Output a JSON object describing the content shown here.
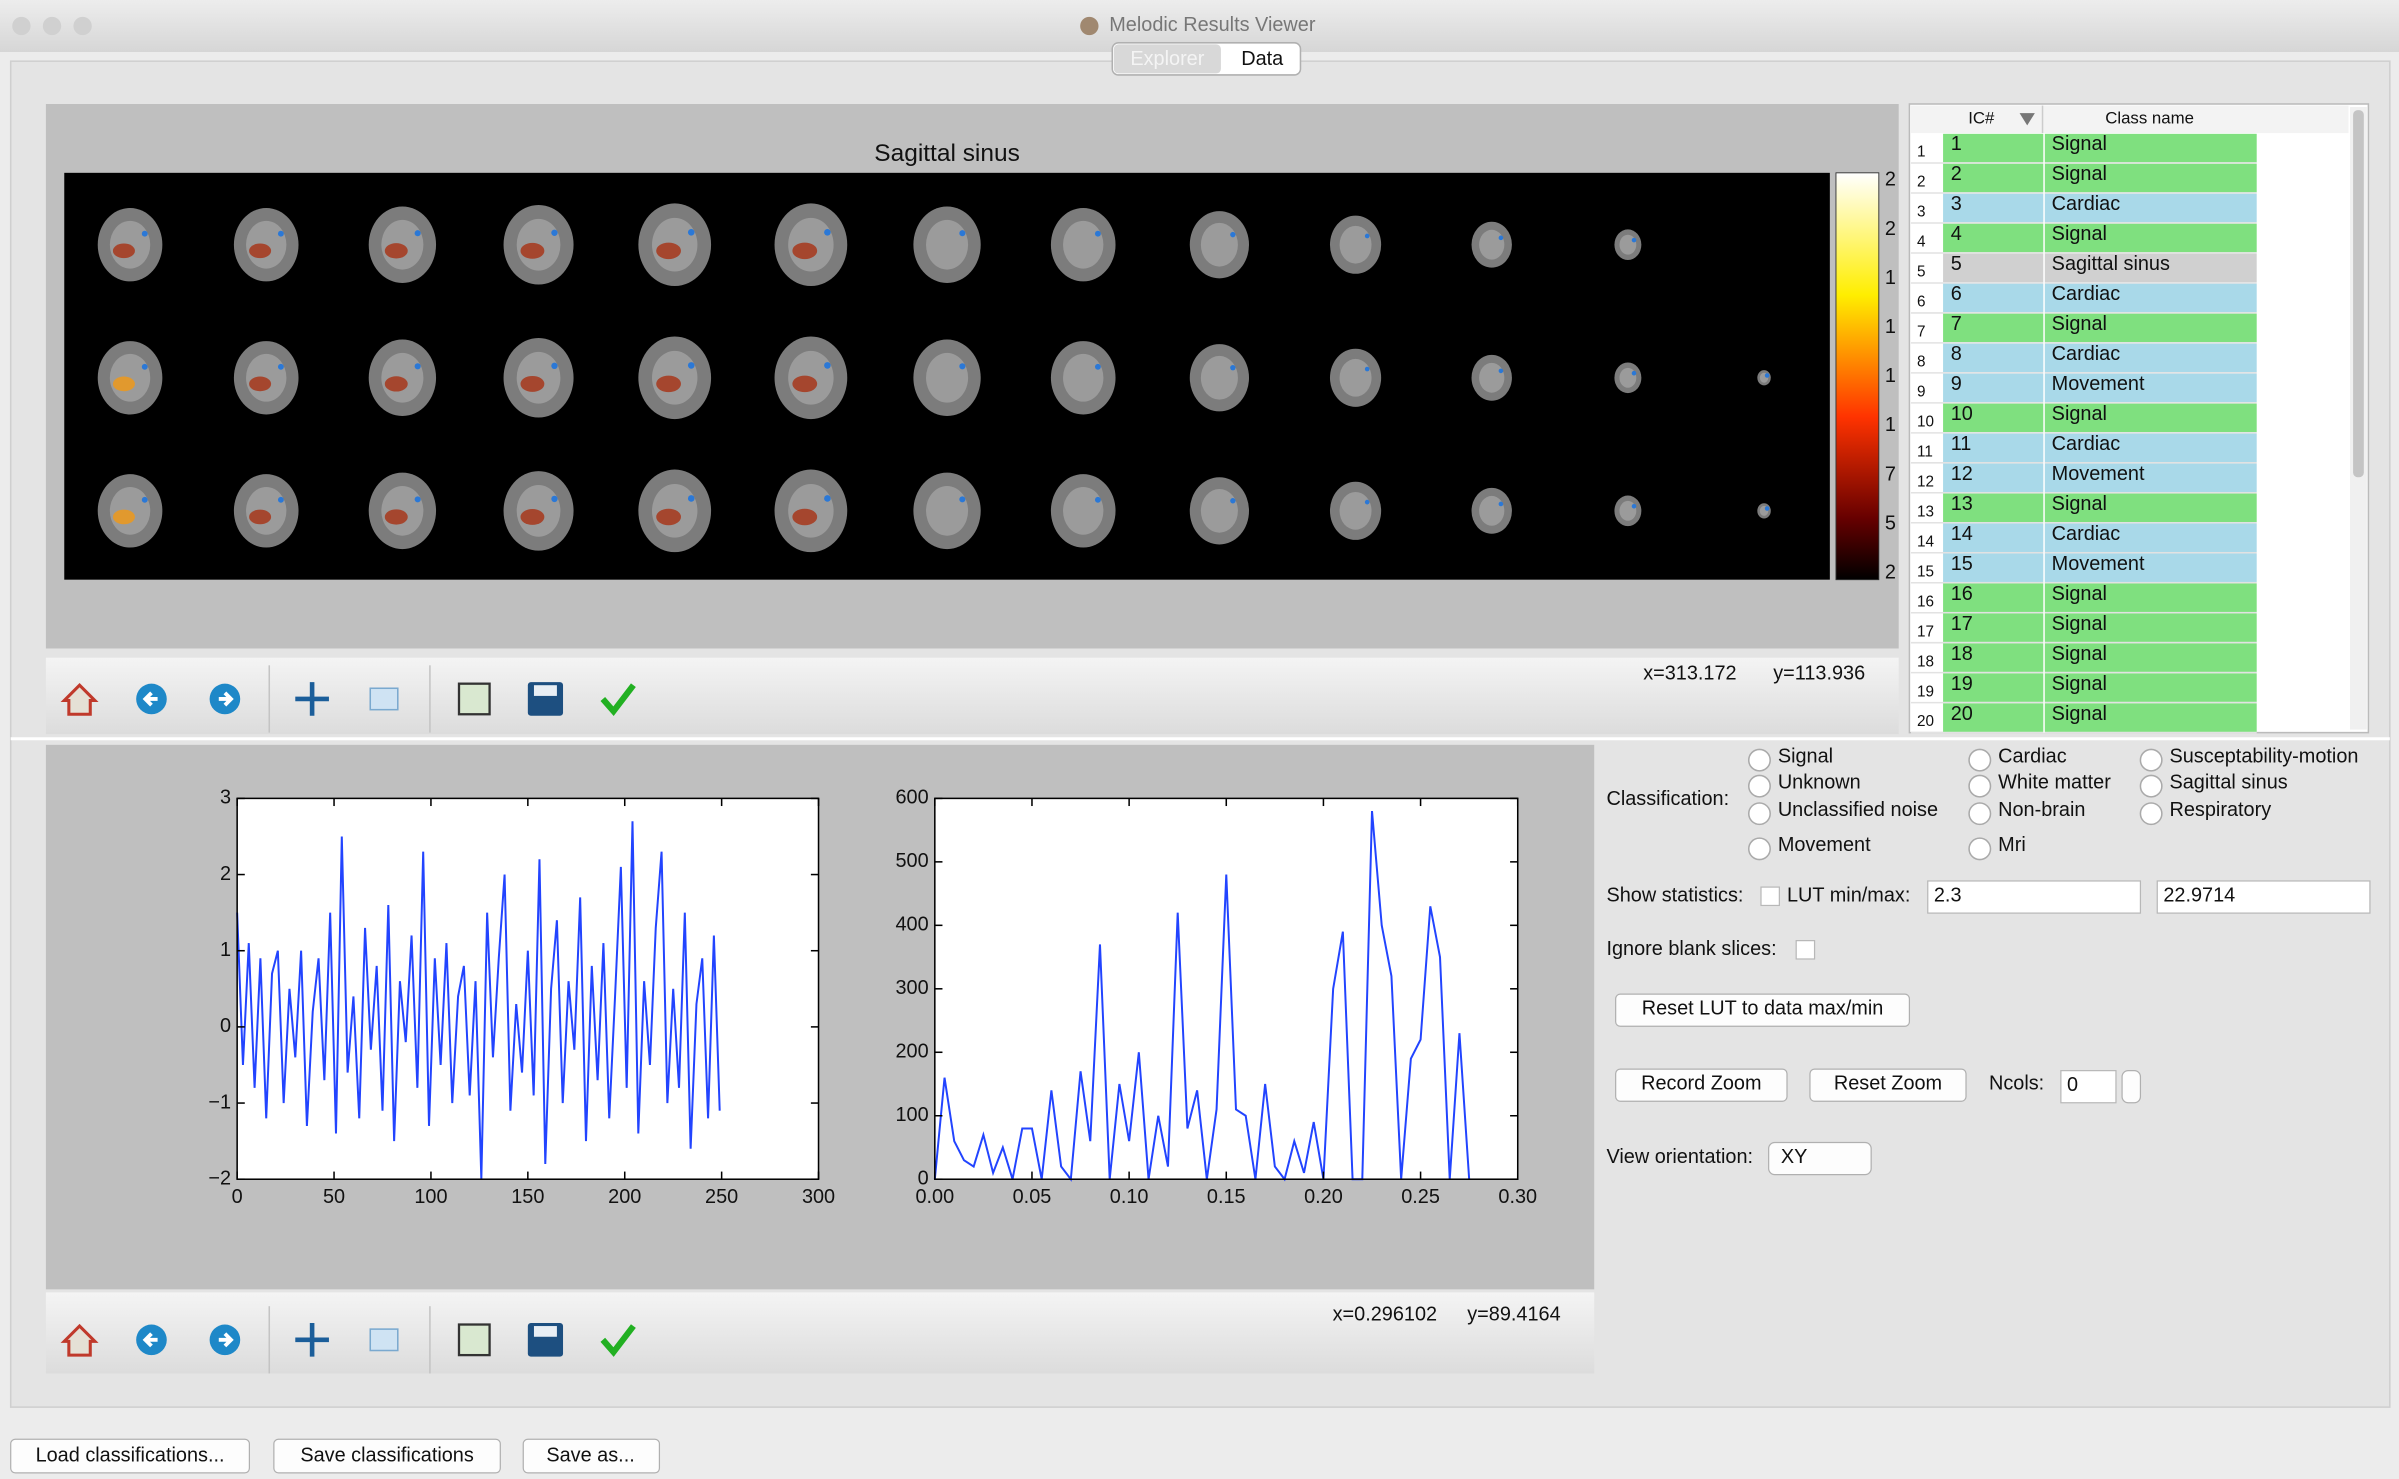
{
  "app": {
    "title": "Melodic Results Viewer",
    "tabs": [
      "Explorer",
      "Data"
    ],
    "component_view": {
      "title": "Sagittal sinus",
      "colorbar_labels": [
        "2",
        "2",
        "1",
        "1",
        "1",
        "1",
        "7",
        "5",
        "2"
      ],
      "cursor": [
        "x=313.172",
        "y=113.936"
      ]
    },
    "timeseries_cursor": [
      "x=0.296102",
      "y=89.4164"
    ],
    "table": {
      "headers": [
        "IC#",
        "Class name"
      ],
      "colors": {
        "Signal": "#7fe07f",
        "Cardiac": "#a9d9e9",
        "Movement": "#a9d9e9",
        "Sagittal sinus": "#d0d0d0"
      },
      "rows": [
        [
          "1",
          "1",
          "Signal"
        ],
        [
          "2",
          "2",
          "Signal"
        ],
        [
          "3",
          "3",
          "Cardiac"
        ],
        [
          "4",
          "4",
          "Signal"
        ],
        [
          "5",
          "5",
          "Sagittal sinus"
        ],
        [
          "6",
          "6",
          "Cardiac"
        ],
        [
          "7",
          "7",
          "Signal"
        ],
        [
          "8",
          "8",
          "Cardiac"
        ],
        [
          "9",
          "9",
          "Movement"
        ],
        [
          "10",
          "10",
          "Signal"
        ],
        [
          "11",
          "11",
          "Cardiac"
        ],
        [
          "12",
          "12",
          "Movement"
        ],
        [
          "13",
          "13",
          "Signal"
        ],
        [
          "14",
          "14",
          "Cardiac"
        ],
        [
          "15",
          "15",
          "Movement"
        ],
        [
          "16",
          "16",
          "Signal"
        ],
        [
          "17",
          "17",
          "Signal"
        ],
        [
          "18",
          "18",
          "Signal"
        ],
        [
          "19",
          "19",
          "Signal"
        ],
        [
          "20",
          "20",
          "Signal"
        ]
      ]
    },
    "controls": {
      "classification_label": "Classification:",
      "options": [
        "Signal",
        "Unknown",
        "Unclassified noise",
        "Movement",
        "Cardiac",
        "White matter",
        "Non-brain",
        "Mri",
        "Susceptability-motion",
        "Sagittal sinus",
        "Respiratory"
      ],
      "show_statistics": "Show statistics:",
      "lut_label": "LUT min/max:",
      "lut_min": "2.3",
      "lut_max": "22.9714",
      "ignore_blank": "Ignore blank slices:",
      "reset_lut": "Reset LUT to data max/min",
      "record_zoom": "Record Zoom",
      "reset_zoom": "Reset Zoom",
      "ncols_label": "Ncols:",
      "ncols": "0",
      "view_orientation_label": "View orientation:",
      "view_orientation": "XY"
    },
    "buttons": [
      "Load classifications...",
      "Save classifications",
      "Save as..."
    ]
  },
  "chart_data": [
    {
      "type": "line",
      "x": [
        0,
        3,
        6,
        9,
        12,
        15,
        18,
        21,
        24,
        27,
        30,
        33,
        36,
        39,
        42,
        45,
        48,
        51,
        54,
        57,
        60,
        63,
        66,
        69,
        72,
        75,
        78,
        81,
        84,
        87,
        90,
        93,
        96,
        99,
        102,
        105,
        108,
        111,
        114,
        117,
        120,
        123,
        126,
        129,
        132,
        135,
        138,
        141,
        144,
        147,
        150,
        153,
        156,
        159,
        162,
        165,
        168,
        171,
        174,
        177,
        180,
        183,
        186,
        189,
        192,
        195,
        198,
        201,
        204,
        207,
        210,
        213,
        216,
        219,
        222,
        225,
        228,
        231,
        234,
        237,
        240,
        243,
        246,
        249
      ],
      "series": [
        {
          "color": "#2244ff",
          "values": [
            1.5,
            -0.5,
            1.1,
            -0.8,
            0.9,
            -1.2,
            0.7,
            1.0,
            -1.0,
            0.5,
            -0.4,
            1.0,
            -1.3,
            0.2,
            0.9,
            -0.7,
            1.5,
            -1.4,
            2.5,
            -0.6,
            0.4,
            -1.2,
            1.3,
            -0.3,
            0.8,
            -1.1,
            1.6,
            -1.5,
            0.6,
            -0.2,
            1.2,
            -0.8,
            2.3,
            -1.3,
            0.9,
            -0.5,
            1.1,
            -1.0,
            0.4,
            0.8,
            -0.9,
            0.6,
            -2.0,
            1.5,
            -0.4,
            0.9,
            2.0,
            -1.1,
            0.3,
            -0.6,
            1.0,
            -0.9,
            2.2,
            -1.8,
            0.5,
            1.4,
            -1.0,
            0.6,
            -0.3,
            1.7,
            -1.5,
            0.8,
            -0.7,
            1.1,
            -1.2,
            0.4,
            2.1,
            -0.8,
            2.7,
            -1.4,
            0.6,
            -0.5,
            1.3,
            2.3,
            -1.0,
            0.5,
            -0.8,
            1.5,
            -1.6,
            0.3,
            0.9,
            -1.2,
            1.2,
            -1.1
          ]
        }
      ],
      "xlim": [
        0,
        300
      ],
      "xticks": [
        0,
        50,
        100,
        150,
        200,
        250,
        300
      ],
      "ylim": [
        -2,
        3
      ],
      "yticks": [
        {
          "value": -2,
          "label": "−2"
        },
        {
          "value": -1,
          "label": "−1"
        },
        0,
        1,
        2,
        3
      ]
    },
    {
      "type": "line",
      "x": [
        0,
        0.005,
        0.01,
        0.015,
        0.02,
        0.025,
        0.03,
        0.035,
        0.04,
        0.045,
        0.05,
        0.055,
        0.06,
        0.065,
        0.07,
        0.075,
        0.08,
        0.085,
        0.09,
        0.095,
        0.1,
        0.105,
        0.11,
        0.115,
        0.12,
        0.125,
        0.13,
        0.135,
        0.14,
        0.145,
        0.15,
        0.155,
        0.16,
        0.165,
        0.17,
        0.175,
        0.18,
        0.185,
        0.19,
        0.195,
        0.2,
        0.205,
        0.21,
        0.215,
        0.22,
        0.225,
        0.23,
        0.235,
        0.24,
        0.245,
        0.25,
        0.255,
        0.26,
        0.265,
        0.27,
        0.275
      ],
      "series": [
        {
          "color": "#2244ff",
          "values": [
            0,
            160,
            60,
            30,
            20,
            70,
            10,
            50,
            0,
            80,
            80,
            0,
            140,
            20,
            0,
            170,
            60,
            370,
            0,
            150,
            60,
            200,
            0,
            100,
            20,
            420,
            80,
            140,
            0,
            110,
            480,
            110,
            100,
            0,
            150,
            20,
            0,
            60,
            10,
            90,
            0,
            300,
            390,
            0,
            0,
            580,
            400,
            320,
            0,
            190,
            220,
            430,
            350,
            0,
            230,
            0
          ]
        }
      ],
      "xlim": [
        0,
        0.3
      ],
      "xticks": [
        {
          "value": 0,
          "label": "0.00"
        },
        {
          "value": 0.05,
          "label": "0.05"
        },
        {
          "value": 0.1,
          "label": "0.10"
        },
        {
          "value": 0.15,
          "label": "0.15"
        },
        {
          "value": 0.2,
          "label": "0.20"
        },
        {
          "value": 0.25,
          "label": "0.25"
        },
        {
          "value": 0.3,
          "label": "0.30"
        }
      ],
      "ylim": [
        0,
        600
      ],
      "yticks": [
        0,
        100,
        200,
        300,
        400,
        500,
        600
      ]
    }
  ]
}
